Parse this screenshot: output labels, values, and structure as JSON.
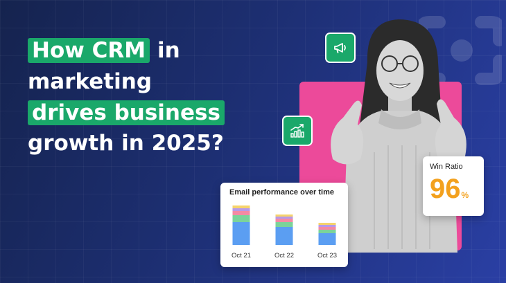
{
  "headline": {
    "line1_highlight": "How CRM",
    "line1_rest": " in",
    "line2": "marketing",
    "line3_highlight": "drives business",
    "line4": "growth in 2025?"
  },
  "win_ratio": {
    "title": "Win Ratio",
    "value": "96",
    "unit": "%"
  },
  "chart_data": {
    "type": "bar",
    "title": "Email performance over time",
    "categories": [
      "Oct 21",
      "Oct 22",
      "Oct 23"
    ],
    "series": [
      {
        "values": [
          33,
          26,
          17
        ],
        "color": "#5b9ef2"
      },
      {
        "values": [
          10,
          7,
          5
        ],
        "color": "#7bd39a"
      },
      {
        "values": [
          6,
          5,
          4
        ],
        "color": "#f48aa4"
      },
      {
        "values": [
          4,
          3,
          3
        ],
        "color": "#b69ae8"
      },
      {
        "values": [
          4,
          3,
          3
        ],
        "color": "#f6d36b"
      }
    ],
    "ylim": [
      0,
      60
    ],
    "grid": false,
    "stacked": true
  },
  "colors": {
    "accent_green": "#1aa86a",
    "pink": "#ec4a9a",
    "orange": "#f3a11e"
  },
  "icons": [
    "megaphone-icon",
    "growth-chart-icon",
    "brand-logo-icon"
  ]
}
